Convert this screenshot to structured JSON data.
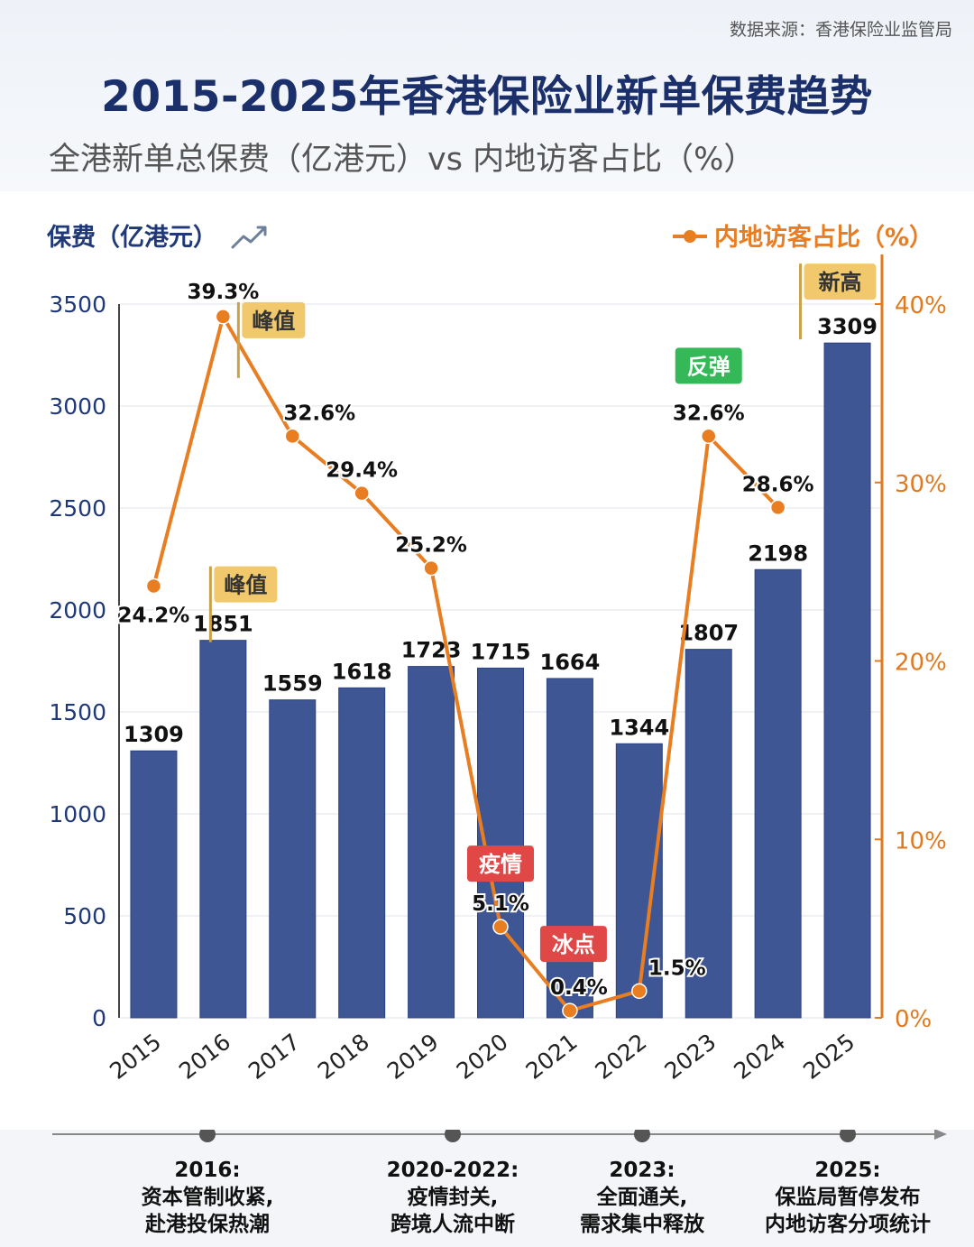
{
  "source": "数据来源：香港保险业监管局",
  "title": "2015-2025年香港保险业新单保费趋势",
  "subtitle": "全港新单总保费（亿港元）vs 内地访客占比（%）",
  "colors": {
    "bar": "#3f5694",
    "line": "#e87d22",
    "left_axis": "#1f3878",
    "right_axis": "#e07a20",
    "tag_gold": "#f1c96c",
    "tag_green": "#35b857",
    "tag_red": "#e04848"
  },
  "icons": {
    "trend": "trend-up-icon",
    "legend": "line-marker-icon"
  },
  "chart_data": {
    "type": "bar",
    "categories": [
      "2015",
      "2016",
      "2017",
      "2018",
      "2019",
      "2020",
      "2021",
      "2022",
      "2023",
      "2024",
      "2025"
    ],
    "left_axis": {
      "label": "保费（亿港元）",
      "ylim": [
        0,
        3500
      ],
      "ticks": [
        "0",
        "500",
        "1000",
        "1500",
        "2000",
        "2500",
        "3000",
        "3500"
      ]
    },
    "right_axis": {
      "ylim": [
        0,
        40
      ],
      "ticks": [
        "0%",
        "10%",
        "20%",
        "30%",
        "40%"
      ]
    },
    "series": [
      {
        "type": "bar",
        "values": [
          1309,
          1851,
          1559,
          1618,
          1723,
          1715,
          1664,
          1344,
          1807,
          2198,
          3309
        ],
        "labels": [
          "1309",
          "1851",
          "1559",
          "1618",
          "1723",
          "1715",
          "1664",
          "1344",
          "1807",
          "2198",
          "3309"
        ]
      },
      {
        "type": "line",
        "name": "内地访客占比（%）",
        "values": [
          24.2,
          39.3,
          32.6,
          29.4,
          25.2,
          5.1,
          0.4,
          1.5,
          32.6,
          28.6,
          null
        ],
        "labels": [
          "24.2%",
          "39.3%",
          "32.6%",
          "29.4%",
          "25.2%",
          "5.1%",
          "0.4%",
          "1.5%",
          "32.6%",
          "28.6%",
          ""
        ]
      }
    ],
    "annotations": [
      {
        "text": "峰值",
        "target": "line",
        "index": 1,
        "style": "gold"
      },
      {
        "text": "峰值",
        "target": "bar",
        "index": 1,
        "style": "gold"
      },
      {
        "text": "反弹",
        "target": "line",
        "index": 8,
        "style": "green"
      },
      {
        "text": "疫情",
        "target": "line",
        "index": 5,
        "style": "red"
      },
      {
        "text": "冰点",
        "target": "line",
        "index": 6,
        "style": "red"
      },
      {
        "text": "新高",
        "target": "bar",
        "index": 10,
        "style": "gold"
      }
    ],
    "grid": true,
    "legend": "top-right"
  },
  "timeline": [
    {
      "year": "2016:",
      "lines": [
        "资本管制收紧,",
        "赴港投保热潮"
      ]
    },
    {
      "year": "2020-2022:",
      "lines": [
        "疫情封关,",
        "跨境人流中断"
      ]
    },
    {
      "year": "2023:",
      "lines": [
        "全面通关,",
        "需求集中释放"
      ]
    },
    {
      "year": "2025:",
      "lines": [
        "保监局暂停发布",
        "内地访客分项统计"
      ]
    }
  ]
}
